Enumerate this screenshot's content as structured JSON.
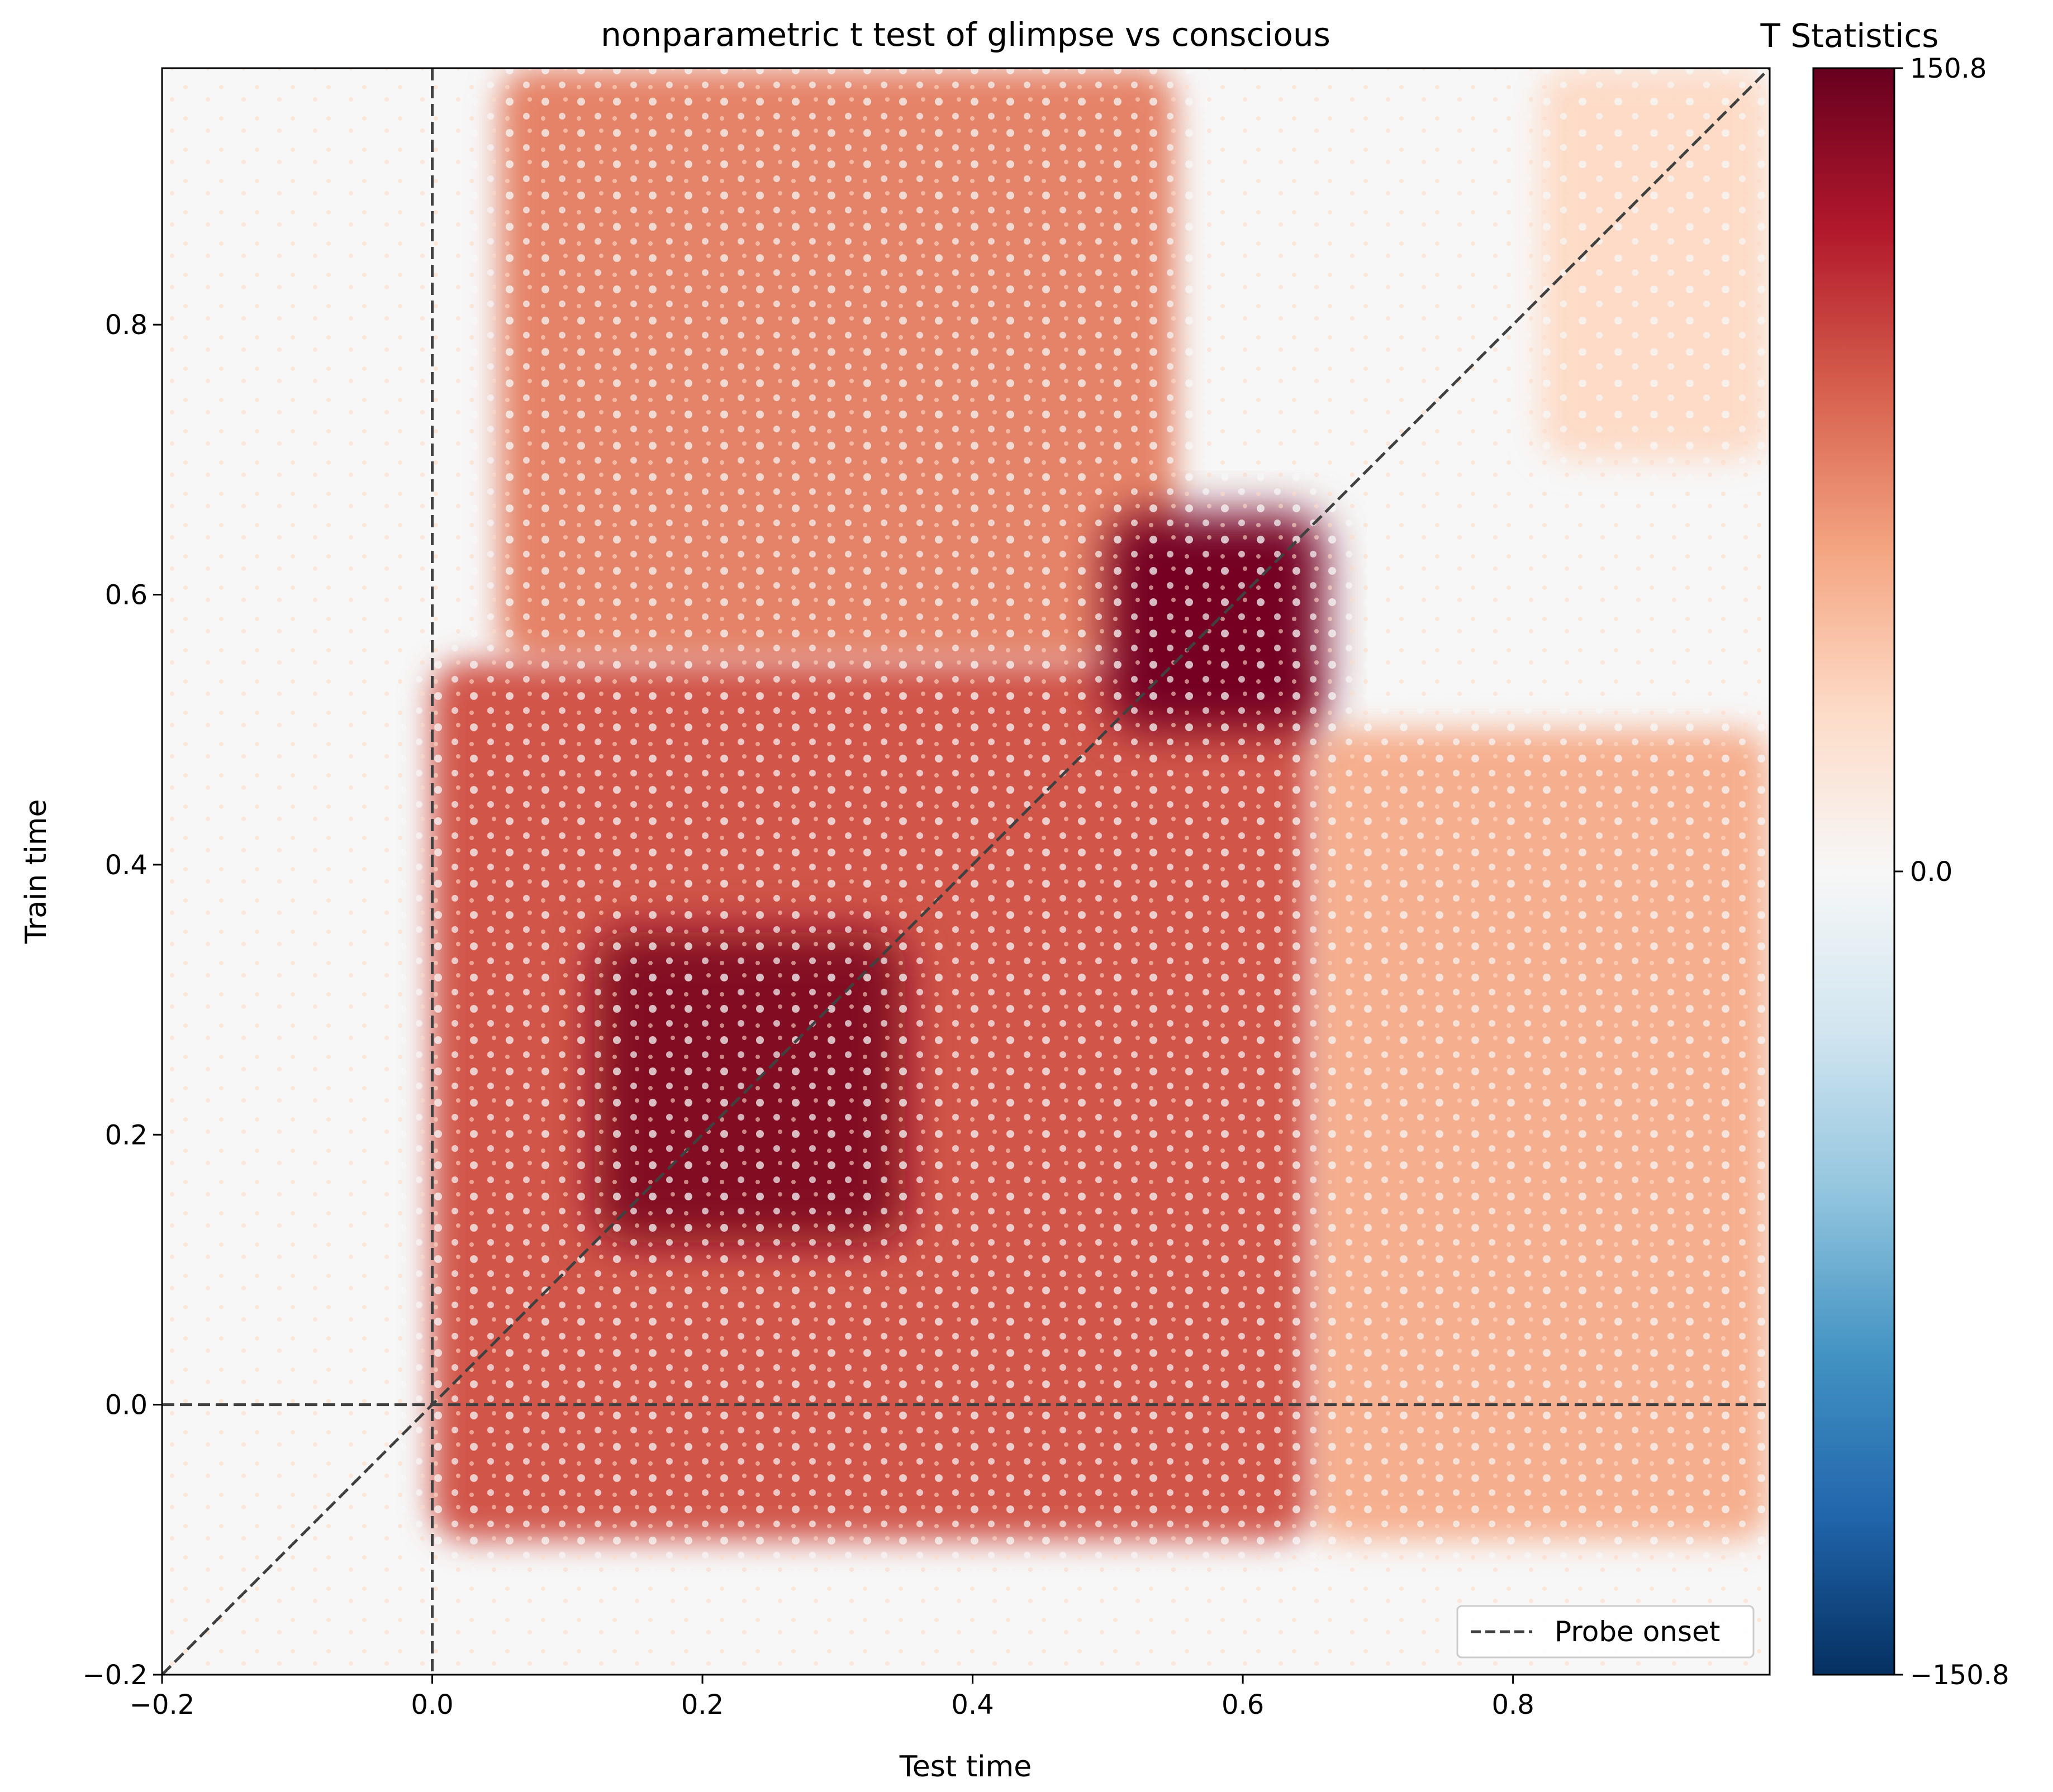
{
  "chart_data": {
    "type": "heatmap",
    "title": "nonparametric t test of glimpse vs conscious",
    "xlabel": "Test time",
    "ylabel": "Train time",
    "xlim": [
      -0.2,
      0.99
    ],
    "ylim": [
      -0.2,
      0.99
    ],
    "x_ticks": [
      -0.2,
      0.0,
      0.2,
      0.4,
      0.6,
      0.8
    ],
    "x_tick_labels": [
      "−0.2",
      "0.0",
      "0.2",
      "0.4",
      "0.6",
      "0.8"
    ],
    "y_ticks": [
      -0.2,
      0.0,
      0.2,
      0.4,
      0.6,
      0.8
    ],
    "y_tick_labels": [
      "−0.2",
      "0.0",
      "0.2",
      "0.4",
      "0.6",
      "0.8"
    ],
    "colormap": "RdBu_r",
    "colorbar": {
      "title": "T Statistics",
      "min": -150.8,
      "max": 150.8,
      "ticks": [
        150.8,
        0.0,
        -150.8
      ],
      "tick_labels": [
        "150.8",
        "0.0",
        "−150.8"
      ]
    },
    "approx_value_regions": [
      {
        "label": "diagonal early peak",
        "x_range": [
          0.12,
          0.35
        ],
        "y_range": [
          0.12,
          0.35
        ],
        "t": 140
      },
      {
        "label": "diagonal late peak",
        "x_range": [
          0.5,
          0.66
        ],
        "y_range": [
          0.5,
          0.66
        ],
        "t": 145
      },
      {
        "label": "broad square",
        "x_range": [
          0.0,
          0.65
        ],
        "y_range": [
          -0.1,
          0.55
        ],
        "t": 95
      },
      {
        "label": "late train band",
        "x_range": [
          0.05,
          0.55
        ],
        "y_range": [
          0.55,
          0.99
        ],
        "t": 75
      },
      {
        "label": "late test band",
        "x_range": [
          0.65,
          0.99
        ],
        "y_range": [
          -0.1,
          0.5
        ],
        "t": 55
      },
      {
        "label": "far corner",
        "x_range": [
          0.82,
          0.99
        ],
        "y_range": [
          0.7,
          0.99
        ],
        "t": 30
      }
    ],
    "reference_lines": {
      "vertical_x": 0.0,
      "horizontal_y": 0.0,
      "diagonal": true,
      "style": "dashed",
      "color": "#404040"
    },
    "legend": {
      "location": "lower right",
      "entries": [
        "Probe onset"
      ]
    }
  }
}
